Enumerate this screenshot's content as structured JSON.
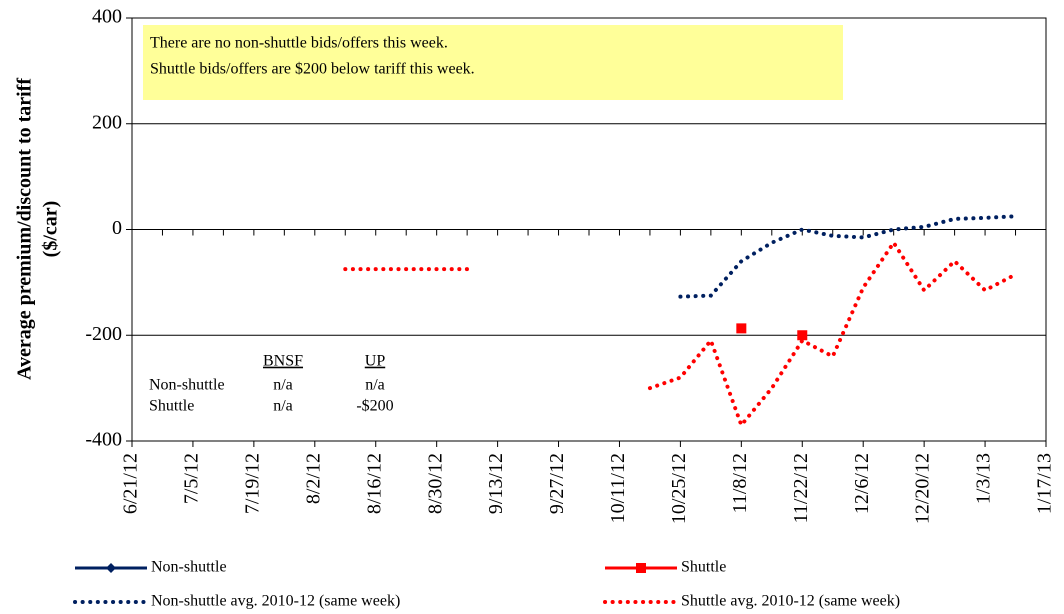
{
  "chart_data": {
    "type": "line",
    "y_label": [
      "Average premium/discount to tariff",
      "($/car)"
    ],
    "ylim": [
      -400,
      400
    ],
    "yticks": [
      -400,
      -200,
      0,
      200,
      400
    ],
    "grid": true,
    "xlim": [
      "6/21/12",
      "1/17/13"
    ],
    "xticks": [
      "6/21/12",
      "7/5/12",
      "7/19/12",
      "8/2/12",
      "8/16/12",
      "8/30/12",
      "9/13/12",
      "9/27/12",
      "10/11/12",
      "10/25/12",
      "11/8/12",
      "11/22/12",
      "12/6/12",
      "12/20/12",
      "1/3/13",
      "1/17/13"
    ],
    "minor_tick_days": 7,
    "series": [
      {
        "name": "Non-shuttle",
        "color": "#002060",
        "style": "solid",
        "marker": "diamond",
        "x": [],
        "values": []
      },
      {
        "name": "Shuttle",
        "color": "#ff0000",
        "style": "solid",
        "marker": "square",
        "x": [
          "11/8/12",
          "11/15/12",
          "11/22/12"
        ],
        "values": [
          -187,
          null,
          -200
        ]
      },
      {
        "name": "Non-shuttle avg. 2010-12 (same week)",
        "color": "#002060",
        "style": "dotted",
        "marker": "none",
        "x": [
          "10/25/12",
          "11/1/12",
          "11/8/12",
          "11/15/12",
          "11/22/12",
          "11/29/12",
          "12/6/12",
          "12/13/12",
          "12/20/12",
          "12/27/12",
          "1/3/13",
          "1/10/13"
        ],
        "values": [
          -127,
          -125,
          -60,
          -25,
          0,
          -12,
          -15,
          0,
          5,
          20,
          22,
          25
        ]
      },
      {
        "name": "Shuttle avg. 2010-12 (same week)",
        "color": "#ff0000",
        "style": "dotted",
        "marker": "none",
        "x": [
          "8/9/12",
          "8/16/12",
          "8/23/12",
          "8/30/12",
          "9/6/12",
          "9/13/12",
          "10/18/12",
          "10/25/12",
          "11/1/12",
          "11/8/12",
          "11/15/12",
          "11/22/12",
          "11/29/12",
          "12/6/12",
          "12/13/12",
          "12/20/12",
          "12/27/12",
          "1/3/13",
          "1/10/13"
        ],
        "values": [
          -75,
          -75,
          -75,
          -75,
          -75,
          null,
          -300,
          -280,
          -210,
          -370,
          -300,
          -210,
          -240,
          -110,
          -25,
          -115,
          -60,
          -115,
          -85
        ]
      }
    ],
    "annotation": [
      "There are no non-shuttle bids/offers this week.",
      "Shuttle bids/offers are $200  below tariff this week."
    ],
    "table": {
      "header": [
        "BNSF",
        "UP"
      ],
      "rows": [
        {
          "label": "Non-shuttle",
          "cells": [
            "n/a",
            "n/a"
          ]
        },
        {
          "label": "Shuttle",
          "cells": [
            "n/a",
            "-$200"
          ]
        }
      ]
    }
  }
}
